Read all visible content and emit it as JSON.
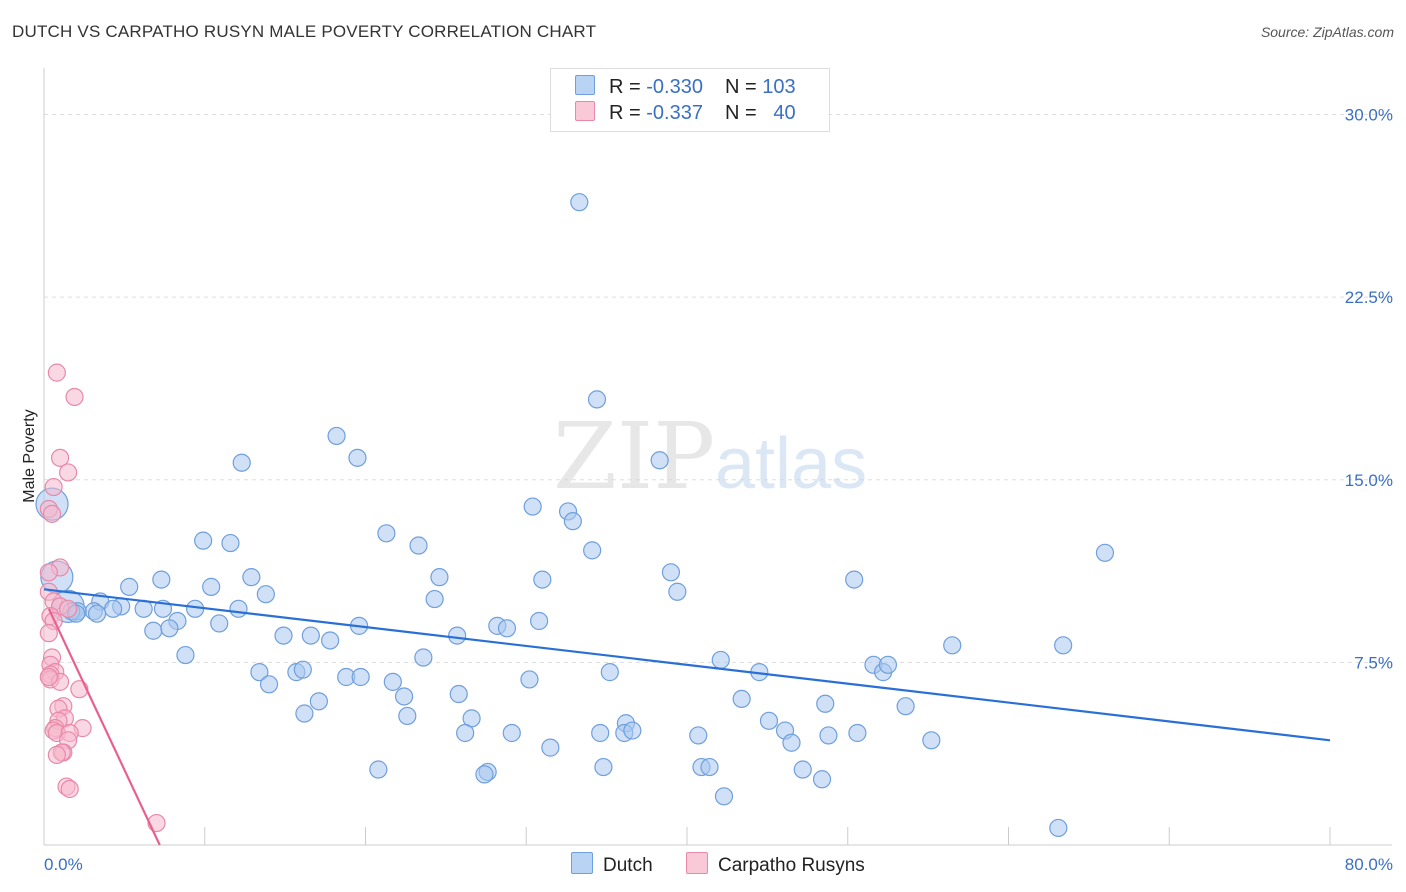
{
  "title": "DUTCH VS CARPATHO RUSYN MALE POVERTY CORRELATION CHART",
  "source": "Source: ZipAtlas.com",
  "watermark": {
    "zip": "ZIP",
    "atlas": "atlas"
  },
  "legend": {
    "rows": [
      {
        "r_label": "R =",
        "r_value": "-0.330",
        "n_label": "N =",
        "n_value": "103"
      },
      {
        "r_label": "R =",
        "r_value": "-0.337",
        "n_label": "N =",
        "n_value": "40"
      }
    ]
  },
  "chart_data": {
    "type": "scatter",
    "ylabel": "Male Poverty",
    "xlabel": "",
    "xlim": [
      0,
      80
    ],
    "ylim": [
      0,
      31.5
    ],
    "x_tick_labels": [
      "0.0%",
      "80.0%"
    ],
    "y_tick_labels": [
      "7.5%",
      "15.0%",
      "22.5%",
      "30.0%"
    ],
    "y_ticks": [
      7.5,
      15.0,
      22.5,
      30.0
    ],
    "grid": true,
    "legend_position": "top-center",
    "series": [
      {
        "name": "Dutch",
        "color": "#a9c8f0",
        "stroke": "#6f9fdc",
        "trend_color": "#2a6fd6",
        "trend": {
          "x": [
            0,
            80
          ],
          "y": [
            10.5,
            4.3
          ]
        },
        "points": [
          [
            0.5,
            14.0,
            "big"
          ],
          [
            0.8,
            11.0,
            "big"
          ],
          [
            1.5,
            9.8,
            "big"
          ],
          [
            33.3,
            26.4
          ],
          [
            34.4,
            18.3
          ],
          [
            18.2,
            16.8
          ],
          [
            19.5,
            15.9
          ],
          [
            12.3,
            15.7
          ],
          [
            38.3,
            15.8
          ],
          [
            30.4,
            13.9
          ],
          [
            32.6,
            13.7
          ],
          [
            32.9,
            13.3
          ],
          [
            9.9,
            12.5
          ],
          [
            11.6,
            12.4
          ],
          [
            21.3,
            12.8
          ],
          [
            23.3,
            12.3
          ],
          [
            34.1,
            12.1
          ],
          [
            66.0,
            12.0
          ],
          [
            7.3,
            10.9
          ],
          [
            12.9,
            11.0
          ],
          [
            24.6,
            11.0
          ],
          [
            31.0,
            10.9
          ],
          [
            39.0,
            11.2
          ],
          [
            50.4,
            10.9
          ],
          [
            5.3,
            10.6
          ],
          [
            10.4,
            10.6
          ],
          [
            13.8,
            10.3
          ],
          [
            24.3,
            10.1
          ],
          [
            39.4,
            10.4
          ],
          [
            3.5,
            10.0
          ],
          [
            4.8,
            9.8
          ],
          [
            6.2,
            9.7
          ],
          [
            7.4,
            9.7
          ],
          [
            12.1,
            9.7
          ],
          [
            4.3,
            9.7
          ],
          [
            3.1,
            9.6
          ],
          [
            2.1,
            9.6
          ],
          [
            1.7,
            9.6
          ],
          [
            3.3,
            9.5
          ],
          [
            2.0,
            9.5
          ],
          [
            9.4,
            9.7
          ],
          [
            8.3,
            9.2
          ],
          [
            10.9,
            9.1
          ],
          [
            19.6,
            9.0
          ],
          [
            28.2,
            9.0
          ],
          [
            28.8,
            8.9
          ],
          [
            30.8,
            9.2
          ],
          [
            6.8,
            8.8
          ],
          [
            7.8,
            8.9
          ],
          [
            14.9,
            8.6
          ],
          [
            16.6,
            8.6
          ],
          [
            17.8,
            8.4
          ],
          [
            25.7,
            8.6
          ],
          [
            56.5,
            8.2
          ],
          [
            63.4,
            8.2
          ],
          [
            8.8,
            7.8
          ],
          [
            23.6,
            7.7
          ],
          [
            42.1,
            7.6
          ],
          [
            13.4,
            7.1
          ],
          [
            15.7,
            7.1
          ],
          [
            16.1,
            7.2
          ],
          [
            18.8,
            6.9
          ],
          [
            19.7,
            6.9
          ],
          [
            35.2,
            7.1
          ],
          [
            44.5,
            7.1
          ],
          [
            51.6,
            7.4
          ],
          [
            52.2,
            7.1
          ],
          [
            52.5,
            7.4
          ],
          [
            14.0,
            6.6
          ],
          [
            21.7,
            6.7
          ],
          [
            30.2,
            6.8
          ],
          [
            22.4,
            6.1
          ],
          [
            25.8,
            6.2
          ],
          [
            17.1,
            5.9
          ],
          [
            43.4,
            6.0
          ],
          [
            48.6,
            5.8
          ],
          [
            53.6,
            5.7
          ],
          [
            16.2,
            5.4
          ],
          [
            22.6,
            5.3
          ],
          [
            26.6,
            5.2
          ],
          [
            36.2,
            5.0
          ],
          [
            45.1,
            5.1
          ],
          [
            26.2,
            4.6
          ],
          [
            29.1,
            4.6
          ],
          [
            34.6,
            4.6
          ],
          [
            36.1,
            4.6
          ],
          [
            36.6,
            4.7
          ],
          [
            40.7,
            4.5
          ],
          [
            46.1,
            4.7
          ],
          [
            46.5,
            4.2
          ],
          [
            48.8,
            4.5
          ],
          [
            50.6,
            4.6
          ],
          [
            55.2,
            4.3
          ],
          [
            31.5,
            4.0
          ],
          [
            20.8,
            3.1
          ],
          [
            34.8,
            3.2
          ],
          [
            27.6,
            3.0
          ],
          [
            27.4,
            2.9
          ],
          [
            40.9,
            3.2
          ],
          [
            41.4,
            3.2
          ],
          [
            47.2,
            3.1
          ],
          [
            48.4,
            2.7
          ],
          [
            42.3,
            2.0
          ],
          [
            63.1,
            0.7
          ]
        ]
      },
      {
        "name": "Carpatho Rusyns",
        "color": "#f6b8cc",
        "stroke": "#e889a8",
        "trend_color": "#e8608e",
        "trend": {
          "x": [
            0.3,
            7.2
          ],
          "y": [
            9.7,
            0.0
          ]
        },
        "points": [
          [
            0.8,
            19.4
          ],
          [
            1.9,
            18.4
          ],
          [
            1.0,
            15.9
          ],
          [
            1.5,
            15.3
          ],
          [
            0.6,
            14.7
          ],
          [
            0.3,
            13.8
          ],
          [
            0.5,
            13.6
          ],
          [
            1.0,
            11.4
          ],
          [
            0.3,
            11.2
          ],
          [
            0.3,
            10.4
          ],
          [
            0.6,
            10.0
          ],
          [
            1.0,
            9.8
          ],
          [
            1.5,
            9.7
          ],
          [
            0.4,
            9.4
          ],
          [
            0.6,
            9.2
          ],
          [
            0.3,
            8.7
          ],
          [
            0.5,
            7.7
          ],
          [
            0.4,
            7.4
          ],
          [
            0.7,
            7.1
          ],
          [
            0.4,
            7.0
          ],
          [
            0.4,
            6.8
          ],
          [
            1.0,
            6.7
          ],
          [
            2.2,
            6.4
          ],
          [
            1.2,
            5.7
          ],
          [
            0.9,
            5.6
          ],
          [
            1.3,
            5.2
          ],
          [
            0.9,
            5.1
          ],
          [
            0.7,
            4.8
          ],
          [
            2.4,
            4.8
          ],
          [
            0.6,
            4.7
          ],
          [
            0.8,
            4.6
          ],
          [
            1.6,
            4.6
          ],
          [
            1.5,
            4.3
          ],
          [
            1.2,
            3.8
          ],
          [
            1.1,
            3.8
          ],
          [
            0.8,
            3.7
          ],
          [
            1.4,
            2.4
          ],
          [
            1.6,
            2.3
          ],
          [
            7.0,
            0.9
          ],
          [
            0.3,
            6.9
          ]
        ]
      }
    ]
  }
}
